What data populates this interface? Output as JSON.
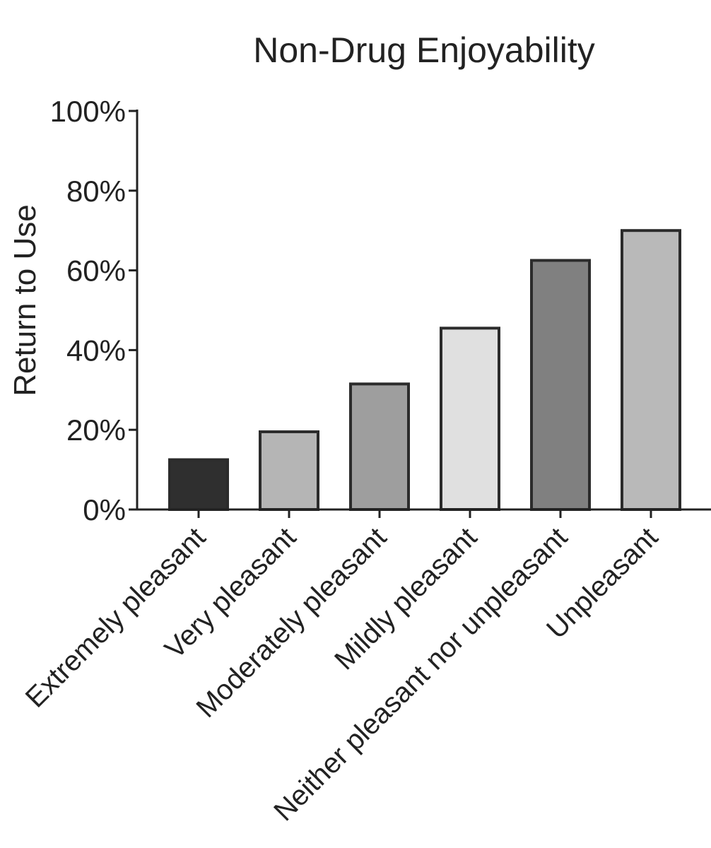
{
  "chart_data": {
    "type": "bar",
    "title": "Non-Drug Enjoyability",
    "ylabel": "Return to Use",
    "xlabel": "",
    "ylim": [
      0,
      100
    ],
    "yticks": [
      0,
      20,
      40,
      60,
      80,
      100
    ],
    "ytick_labels": [
      "0%",
      "20%",
      "40%",
      "60%",
      "80%",
      "100%"
    ],
    "categories": [
      "Extremely pleasant",
      "Very pleasant",
      "Moderately pleasant",
      "Mildly pleasant",
      "Neither pleasant nor unpleasant",
      "Unpleasant"
    ],
    "values": [
      12.5,
      19.5,
      31.5,
      45.5,
      62.5,
      70
    ],
    "colors": [
      "#2f2f2f",
      "#b5b5b5",
      "#9e9e9e",
      "#e0e0e0",
      "#808080",
      "#b9b9b9"
    ],
    "grid": false,
    "legend": "none"
  }
}
